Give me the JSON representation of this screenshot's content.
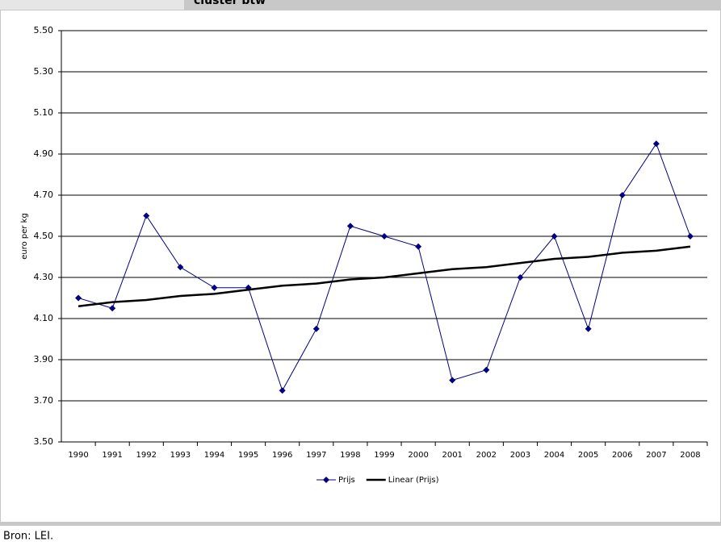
{
  "header": {
    "title": "cluster btw"
  },
  "chart_data": {
    "type": "line",
    "y_label": "euro per kg",
    "categories": [
      "1990",
      "1991",
      "1992",
      "1993",
      "1994",
      "1995",
      "1996",
      "1997",
      "1998",
      "1999",
      "2000",
      "2001",
      "2002",
      "2003",
      "2004",
      "2005",
      "2006",
      "2007",
      "2008"
    ],
    "series": [
      {
        "name": "Prijs",
        "color": "#000080",
        "marker": "diamond",
        "values": [
          4.2,
          4.15,
          4.6,
          4.35,
          4.25,
          4.25,
          3.75,
          4.05,
          4.55,
          4.5,
          4.45,
          3.8,
          3.85,
          4.3,
          4.5,
          4.05,
          4.7,
          4.95,
          4.5
        ]
      },
      {
        "name": "Linear (Prijs)",
        "color": "#000000",
        "values": [
          4.16,
          4.18,
          4.19,
          4.21,
          4.22,
          4.24,
          4.26,
          4.27,
          4.29,
          4.3,
          4.32,
          4.34,
          4.35,
          4.37,
          4.39,
          4.4,
          4.42,
          4.43,
          4.45
        ]
      }
    ],
    "ylim": [
      3.5,
      5.5
    ],
    "yticks": [
      {
        "value": 3.5,
        "label": "3.50"
      },
      {
        "value": 3.7,
        "label": "3.70"
      },
      {
        "value": 3.9,
        "label": "3.90"
      },
      {
        "value": 4.1,
        "label": "4.10"
      },
      {
        "value": 4.3,
        "label": "4.30"
      },
      {
        "value": 4.5,
        "label": "4.50"
      },
      {
        "value": 4.7,
        "label": "4.70"
      },
      {
        "value": 4.9,
        "label": "4.90"
      },
      {
        "value": 5.1,
        "label": "5.10"
      },
      {
        "value": 5.3,
        "label": "5.30"
      },
      {
        "value": 5.5,
        "label": "5.50"
      }
    ],
    "grid": true,
    "legend": "bottom"
  },
  "footer": {
    "source": "Bron: LEI."
  }
}
